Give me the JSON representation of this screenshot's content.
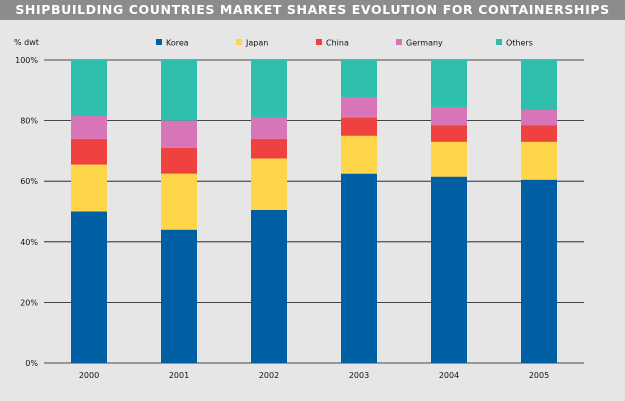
{
  "header": {
    "title": "SHIPBUILDING COUNTRIES MARKET SHARES EVOLUTION FOR CONTAINERSHIPS"
  },
  "chart_data": {
    "type": "bar",
    "stacked": true,
    "title": "SHIPBUILDING COUNTRIES MARKET SHARES EVOLUTION FOR CONTAINERSHIPS",
    "ylabel": "% dwt",
    "xlabel": "",
    "ylim": [
      0,
      100
    ],
    "yticks": [
      0,
      20,
      40,
      60,
      80,
      100
    ],
    "ytick_labels": [
      "0%",
      "20%",
      "40%",
      "60%",
      "80%",
      "100%"
    ],
    "grid": true,
    "legend_position": "top",
    "categories": [
      "2000",
      "2001",
      "2002",
      "2003",
      "2004",
      "2005"
    ],
    "series": [
      {
        "name": "Korea",
        "color": "#005fa3",
        "values": [
          50.0,
          44.0,
          50.5,
          62.5,
          61.5,
          60.5
        ]
      },
      {
        "name": "Japan",
        "color": "#ffd54a",
        "values": [
          15.5,
          18.5,
          17.0,
          12.5,
          11.5,
          12.5
        ]
      },
      {
        "name": "China",
        "color": "#ef4140",
        "values": [
          8.5,
          8.5,
          6.5,
          6.0,
          5.5,
          5.5
        ]
      },
      {
        "name": "Germany",
        "color": "#d874b8",
        "values": [
          7.5,
          9.0,
          7.0,
          6.5,
          6.0,
          5.0
        ]
      },
      {
        "name": "Others",
        "color": "#2fbfad",
        "values": [
          18.5,
          20.0,
          19.0,
          12.5,
          15.5,
          16.5
        ]
      }
    ]
  }
}
